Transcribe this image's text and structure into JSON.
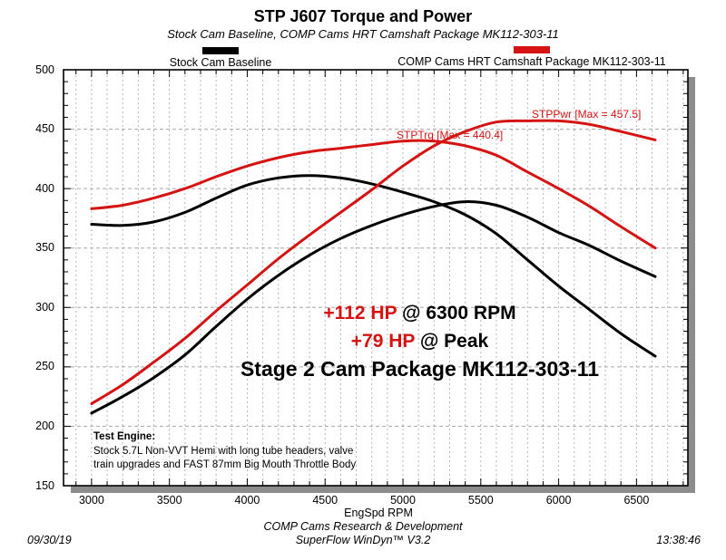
{
  "header": {
    "title": "STP J607 Torque and Power",
    "subtitle": "Stock Cam Baseline, COMP Cams HRT Camshaft Package MK112-303-11"
  },
  "legend": [
    {
      "label": "Stock Cam Baseline",
      "color": "#000000"
    },
    {
      "label": "COMP Cams HRT Camshaft Package MK112-303-11",
      "color": "#d51313"
    }
  ],
  "annotations": {
    "torque_max_label": "STPTrq [Max = 440.4]",
    "power_max_label": "STPPwr [Max = 457.5]",
    "gain1_red": "+112 HP",
    "gain1_black": " @ 6300 RPM",
    "gain2_red": "+79 HP",
    "gain2_black": " @ Peak",
    "package_line": "Stage 2 Cam Package MK112-303-11"
  },
  "test_engine": {
    "heading": "Test Engine:",
    "line1": "Stock 5.7L Non-VVT Hemi with long tube headers, valve",
    "line2": "train upgrades and FAST 87mm Big Mouth Throttle Body"
  },
  "footer": {
    "company": "COMP Cams Research & Development",
    "software": "SuperFlow WinDyn™ V3.2",
    "date": "09/30/19",
    "time": "13:38:46"
  },
  "chart_data": {
    "type": "line",
    "title": "STP J607 Torque and Power",
    "xlabel": "EngSpd RPM",
    "ylabel": "",
    "x_range": [
      2820,
      6830
    ],
    "y_range": [
      150,
      500
    ],
    "x_ticks": [
      3000,
      3500,
      4000,
      4500,
      5000,
      5500,
      6000,
      6500
    ],
    "y_ticks": [
      150,
      200,
      250,
      300,
      350,
      400,
      450,
      500
    ],
    "grid": "dashed gray, vertical minor every 100 RPM, horizontal major every 50",
    "legend_position": "top",
    "x": [
      3000,
      3200,
      3400,
      3600,
      3800,
      4000,
      4200,
      4400,
      4600,
      4800,
      5000,
      5200,
      5400,
      5600,
      5800,
      6000,
      6200,
      6400,
      6620
    ],
    "series": [
      {
        "name": "STPTrq Stock Cam Baseline",
        "unit": "lb-ft",
        "color": "#000000",
        "values": [
          370,
          369,
          372,
          380,
          392,
          403,
          409,
          411,
          409,
          404,
          397,
          389,
          378,
          362,
          340,
          318,
          298,
          278,
          259
        ]
      },
      {
        "name": "STPPwr Stock Cam Baseline",
        "unit": "hp",
        "color": "#000000",
        "values": [
          211,
          225,
          241,
          260,
          284,
          307,
          327,
          344,
          358,
          369,
          378,
          385,
          389,
          386,
          376,
          363,
          352,
          339,
          326
        ]
      },
      {
        "name": "STPTrq COMP Cams HRT Camshaft Package MK112-303-11",
        "unit": "lb-ft",
        "color": "#d51313",
        "max": 440.4,
        "values": [
          383,
          386,
          392,
          400,
          410,
          419,
          426,
          431,
          434,
          437,
          440,
          440,
          436,
          428,
          414,
          400,
          385,
          368,
          350
        ]
      },
      {
        "name": "STPPwr COMP Cams HRT Camshaft Package MK112-303-11",
        "unit": "hp",
        "color": "#d51313",
        "max": 457.5,
        "values": [
          219,
          235,
          254,
          274,
          297,
          319,
          341,
          361,
          380,
          399,
          419,
          436,
          448,
          456,
          457,
          457,
          454,
          448,
          441
        ]
      }
    ]
  }
}
